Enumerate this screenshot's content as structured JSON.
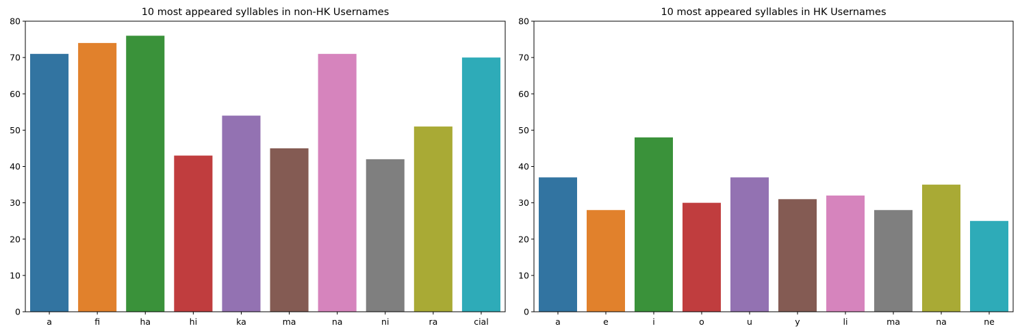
{
  "chart_data": [
    {
      "type": "bar",
      "title": "10 most appeared syllables in non-HK Usernames",
      "categories": [
        "a",
        "fi",
        "ha",
        "hi",
        "ka",
        "ma",
        "na",
        "ni",
        "ra",
        "cial"
      ],
      "values": [
        71,
        74,
        76,
        43,
        54,
        45,
        71,
        42,
        51,
        70
      ],
      "xlabel": "",
      "ylabel": "",
      "ylim": [
        0,
        80
      ],
      "yticks": [
        0,
        10,
        20,
        30,
        40,
        50,
        60,
        70,
        80
      ],
      "grid": false,
      "colors": [
        "#3274a1",
        "#e1812c",
        "#3a923a",
        "#c03d3e",
        "#9372b2",
        "#845b53",
        "#d684bd",
        "#7f7f7f",
        "#a9aa35",
        "#2eabb8"
      ]
    },
    {
      "type": "bar",
      "title": "10 most appeared syllables in HK Usernames",
      "categories": [
        "a",
        "e",
        "i",
        "o",
        "u",
        "y",
        "li",
        "ma",
        "na",
        "ne"
      ],
      "values": [
        37,
        28,
        48,
        30,
        37,
        31,
        32,
        28,
        35,
        25
      ],
      "xlabel": "",
      "ylabel": "",
      "ylim": [
        0,
        80
      ],
      "yticks": [
        0,
        10,
        20,
        30,
        40,
        50,
        60,
        70,
        80
      ],
      "grid": false,
      "colors": [
        "#3274a1",
        "#e1812c",
        "#3a923a",
        "#c03d3e",
        "#9372b2",
        "#845b53",
        "#d684bd",
        "#7f7f7f",
        "#a9aa35",
        "#2eabb8"
      ]
    }
  ]
}
